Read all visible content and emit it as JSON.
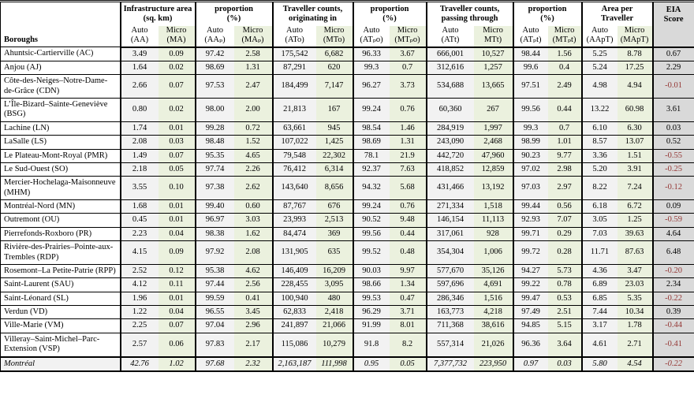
{
  "table": {
    "borough_header": "Boroughs",
    "eia_header_line1": "EIA",
    "eia_header_line2": "Score",
    "auto_label": "Auto",
    "micro_label": "Micro",
    "colors": {
      "auto_column_bg": "#f2f2f2",
      "micro_column_bg": "#ebf1de",
      "eia_column_bg": "#d9d9d9",
      "negative_value_text": "#953735",
      "border": "#000000"
    },
    "groups": [
      {
        "key": "infrastructure-area",
        "line1": "Infrastructure area",
        "line2": "(sq. km)",
        "auto_code": "(AA)",
        "micro_code": "(MA)"
      },
      {
        "key": "proportion-area",
        "line1": "proportion",
        "line2": "(%)",
        "auto_code": "(AAₚ)",
        "micro_code": "(MAₚ)"
      },
      {
        "key": "counts-originating",
        "line1": "Traveller counts,",
        "line2": "originating in",
        "auto_code": "(ATo)",
        "micro_code": "(MTo)"
      },
      {
        "key": "proportion-orig",
        "line1": "proportion",
        "line2": "(%)",
        "auto_code": "(ATₚo)",
        "micro_code": "(MTₚo)"
      },
      {
        "key": "counts-passing",
        "line1": "Traveller counts,",
        "line2": "passing through",
        "auto_code": "(ATt)",
        "micro_code": "MTt)"
      },
      {
        "key": "proportion-passing",
        "line1": "proportion",
        "line2": "(%)",
        "auto_code": "(ATₚt)",
        "micro_code": "(MTₚt)"
      },
      {
        "key": "area-per-traveller",
        "line1": "Area per Traveller",
        "line2": "",
        "auto_code": "(AApT)",
        "micro_code": "(MApT)"
      }
    ],
    "rows": [
      {
        "name": "Ahuntsic-Cartierville (AC)",
        "values": [
          "3.49",
          "0.09",
          "97.42",
          "2.58",
          "175,542",
          "6,682",
          "96.33",
          "3.67",
          "666,001",
          "10,527",
          "98.44",
          "1.56",
          "5.25",
          "8.78"
        ],
        "eia": "0.67",
        "total": false
      },
      {
        "name": "Anjou (AJ)",
        "values": [
          "1.64",
          "0.02",
          "98.69",
          "1.31",
          "87,291",
          "620",
          "99.3",
          "0.7",
          "312,616",
          "1,257",
          "99.6",
          "0.4",
          "5.24",
          "17.25"
        ],
        "eia": "2.29",
        "total": false
      },
      {
        "name": "Côte-des-Neiges–Notre-Dame-de-Grâce (CDN)",
        "values": [
          "2.66",
          "0.07",
          "97.53",
          "2.47",
          "184,499",
          "7,147",
          "96.27",
          "3.73",
          "534,688",
          "13,665",
          "97.51",
          "2.49",
          "4.98",
          "4.94"
        ],
        "eia": "-0.01",
        "total": false
      },
      {
        "name": "L’Île-Bizard–Sainte-Geneviève (BSG)",
        "values": [
          "0.80",
          "0.02",
          "98.00",
          "2.00",
          "21,813",
          "167",
          "99.24",
          "0.76",
          "60,360",
          "267",
          "99.56",
          "0.44",
          "13.22",
          "60.98"
        ],
        "eia": "3.61",
        "total": false
      },
      {
        "name": "Lachine (LN)",
        "values": [
          "1.74",
          "0.01",
          "99.28",
          "0.72",
          "63,661",
          "945",
          "98.54",
          "1.46",
          "284,919",
          "1,997",
          "99.3",
          "0.7",
          "6.10",
          "6.30"
        ],
        "eia": "0.03",
        "total": false
      },
      {
        "name": "LaSalle (LS)",
        "values": [
          "2.08",
          "0.03",
          "98.48",
          "1.52",
          "107,022",
          "1,425",
          "98.69",
          "1.31",
          "243,090",
          "2,468",
          "98.99",
          "1.01",
          "8.57",
          "13.07"
        ],
        "eia": "0.52",
        "total": false
      },
      {
        "name": "Le Plateau-Mont-Royal (PMR)",
        "values": [
          "1.49",
          "0.07",
          "95.35",
          "4.65",
          "79,548",
          "22,302",
          "78.1",
          "21.9",
          "442,720",
          "47,960",
          "90.23",
          "9.77",
          "3.36",
          "1.51"
        ],
        "eia": "-0.55",
        "total": false
      },
      {
        "name": "Le Sud-Ouest (SO)",
        "values": [
          "2.18",
          "0.05",
          "97.74",
          "2.26",
          "76,412",
          "6,314",
          "92.37",
          "7.63",
          "418,852",
          "12,859",
          "97.02",
          "2.98",
          "5.20",
          "3.91"
        ],
        "eia": "-0.25",
        "total": false
      },
      {
        "name": "Mercier-Hochelaga-Maisonneuve (MHM)",
        "values": [
          "3.55",
          "0.10",
          "97.38",
          "2.62",
          "143,640",
          "8,656",
          "94.32",
          "5.68",
          "431,466",
          "13,192",
          "97.03",
          "2.97",
          "8.22",
          "7.24"
        ],
        "eia": "-0.12",
        "total": false
      },
      {
        "name": "Montréal-Nord (MN)",
        "values": [
          "1.68",
          "0.01",
          "99.40",
          "0.60",
          "87,767",
          "676",
          "99.24",
          "0.76",
          "271,334",
          "1,518",
          "99.44",
          "0.56",
          "6.18",
          "6.72"
        ],
        "eia": "0.09",
        "total": false
      },
      {
        "name": "Outremont (OU)",
        "values": [
          "0.45",
          "0.01",
          "96.97",
          "3.03",
          "23,993",
          "2,513",
          "90.52",
          "9.48",
          "146,154",
          "11,113",
          "92.93",
          "7.07",
          "3.05",
          "1.25"
        ],
        "eia": "-0.59",
        "total": false
      },
      {
        "name": "Pierrefonds-Roxboro (PR)",
        "values": [
          "2.23",
          "0.04",
          "98.38",
          "1.62",
          "84,474",
          "369",
          "99.56",
          "0.44",
          "317,061",
          "928",
          "99.71",
          "0.29",
          "7.03",
          "39.63"
        ],
        "eia": "4.64",
        "total": false
      },
      {
        "name": "Rivière-des-Prairies–Pointe-aux-Trembles (RDP)",
        "values": [
          "4.15",
          "0.09",
          "97.92",
          "2.08",
          "131,905",
          "635",
          "99.52",
          "0.48",
          "354,304",
          "1,006",
          "99.72",
          "0.28",
          "11.71",
          "87.63"
        ],
        "eia": "6.48",
        "total": false
      },
      {
        "name": "Rosemont–La Petite-Patrie (RPP)",
        "values": [
          "2.52",
          "0.12",
          "95.38",
          "4.62",
          "146,409",
          "16,209",
          "90.03",
          "9.97",
          "577,670",
          "35,126",
          "94.27",
          "5.73",
          "4.36",
          "3.47"
        ],
        "eia": "-0.20",
        "total": false
      },
      {
        "name": "Saint-Laurent (SAU)",
        "values": [
          "4.12",
          "0.11",
          "97.44",
          "2.56",
          "228,455",
          "3,095",
          "98.66",
          "1.34",
          "597,696",
          "4,691",
          "99.22",
          "0.78",
          "6.89",
          "23.03"
        ],
        "eia": "2.34",
        "total": false
      },
      {
        "name": "Saint-Léonard (SL)",
        "values": [
          "1.96",
          "0.01",
          "99.59",
          "0.41",
          "100,940",
          "480",
          "99.53",
          "0.47",
          "286,346",
          "1,516",
          "99.47",
          "0.53",
          "6.85",
          "5.35"
        ],
        "eia": "-0.22",
        "total": false
      },
      {
        "name": "Verdun (VD)",
        "values": [
          "1.22",
          "0.04",
          "96.55",
          "3.45",
          "62,833",
          "2,418",
          "96.29",
          "3.71",
          "163,773",
          "4,218",
          "97.49",
          "2.51",
          "7.44",
          "10.34"
        ],
        "eia": "0.39",
        "total": false
      },
      {
        "name": "Ville-Marie (VM)",
        "values": [
          "2.25",
          "0.07",
          "97.04",
          "2.96",
          "241,897",
          "21,066",
          "91.99",
          "8.01",
          "711,368",
          "38,616",
          "94.85",
          "5.15",
          "3.17",
          "1.78"
        ],
        "eia": "-0.44",
        "total": false
      },
      {
        "name": "Villeray–Saint-Michel–Parc-Extension (VSP)",
        "values": [
          "2.57",
          "0.06",
          "97.83",
          "2.17",
          "115,086",
          "10,279",
          "91.8",
          "8.2",
          "557,314",
          "21,026",
          "96.36",
          "3.64",
          "4.61",
          "2.71"
        ],
        "eia": "-0.41",
        "total": false
      },
      {
        "name": "Montréal",
        "values": [
          "42.76",
          "1.02",
          "97.68",
          "2.32",
          "2,163,187",
          "111,998",
          "0.95",
          "0.05",
          "7,377,732",
          "223,950",
          "0.97",
          "0.03",
          "5.80",
          "4.54"
        ],
        "eia": "-0.22",
        "total": true
      }
    ],
    "column_widths": {
      "borough": 152,
      "pairs": [
        [
          48,
          47
        ],
        [
          49,
          49
        ],
        [
          55,
          47
        ],
        [
          46,
          47
        ],
        [
          60,
          50
        ],
        [
          44,
          43
        ],
        [
          45,
          45
        ]
      ],
      "eia": 53
    }
  }
}
